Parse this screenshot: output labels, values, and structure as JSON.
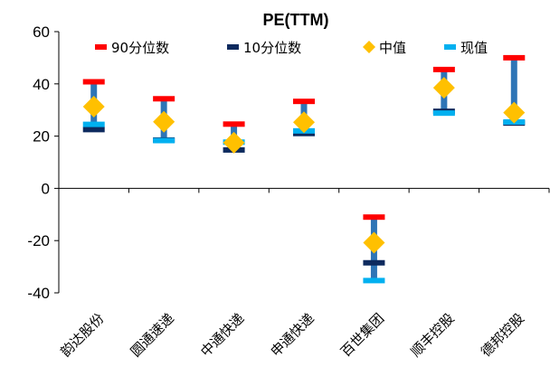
{
  "chart_data": {
    "type": "range",
    "title": "PE(TTM)",
    "categories": [
      "韵达股份",
      "圆通速递",
      "中通快递",
      "申通快递",
      "百世集团",
      "顺丰控股",
      "德邦控股"
    ],
    "ylim": [
      -40,
      60
    ],
    "yticks": [
      -40,
      -20,
      0,
      20,
      40,
      60
    ],
    "series": [
      {
        "name": "90分位数",
        "color": "#ff0000",
        "values": [
          40.8,
          34.3,
          24.6,
          33.3,
          -11.0,
          45.5,
          50.0
        ]
      },
      {
        "name": "10分位数",
        "color": "#0d2a5e",
        "values": [
          22.5,
          18.5,
          14.7,
          21.0,
          -28.5,
          29.5,
          25.0
        ]
      },
      {
        "name": "中值",
        "color": "#ffc000",
        "values": [
          31.3,
          25.5,
          17.5,
          25.3,
          -20.8,
          38.5,
          29.0
        ]
      },
      {
        "name": "现值",
        "color": "#00b0f0",
        "values": [
          24.5,
          18.3,
          17.7,
          22.0,
          -35.3,
          28.8,
          25.4
        ]
      }
    ],
    "range_bar_color": "#2e75b6",
    "legend_position": "top",
    "grid": false
  }
}
